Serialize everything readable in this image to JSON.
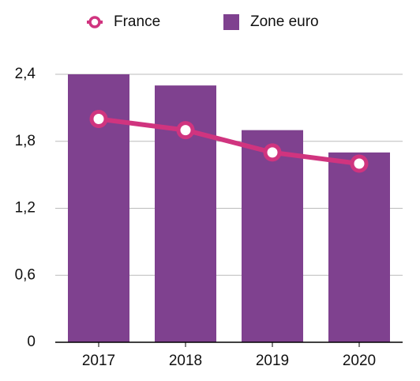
{
  "chart_data": {
    "type": "combo",
    "categories": [
      "2017",
      "2018",
      "2019",
      "2020"
    ],
    "series": [
      {
        "name": "France",
        "type": "line",
        "color": "#d0347f",
        "values": [
          2.0,
          1.9,
          1.7,
          1.6
        ]
      },
      {
        "name": "Zone euro",
        "type": "bar",
        "color": "#7f418f",
        "values": [
          2.4,
          2.3,
          1.9,
          1.7
        ]
      }
    ],
    "ylim": [
      0,
      2.4
    ],
    "yticks": [
      0,
      {
        "value": 0.6,
        "label": "0,6"
      },
      {
        "value": 1.2,
        "label": "1,2"
      },
      {
        "value": 1.8,
        "label": "1,8"
      },
      {
        "value": 2.4,
        "label": "2,4"
      }
    ],
    "grid": true
  }
}
